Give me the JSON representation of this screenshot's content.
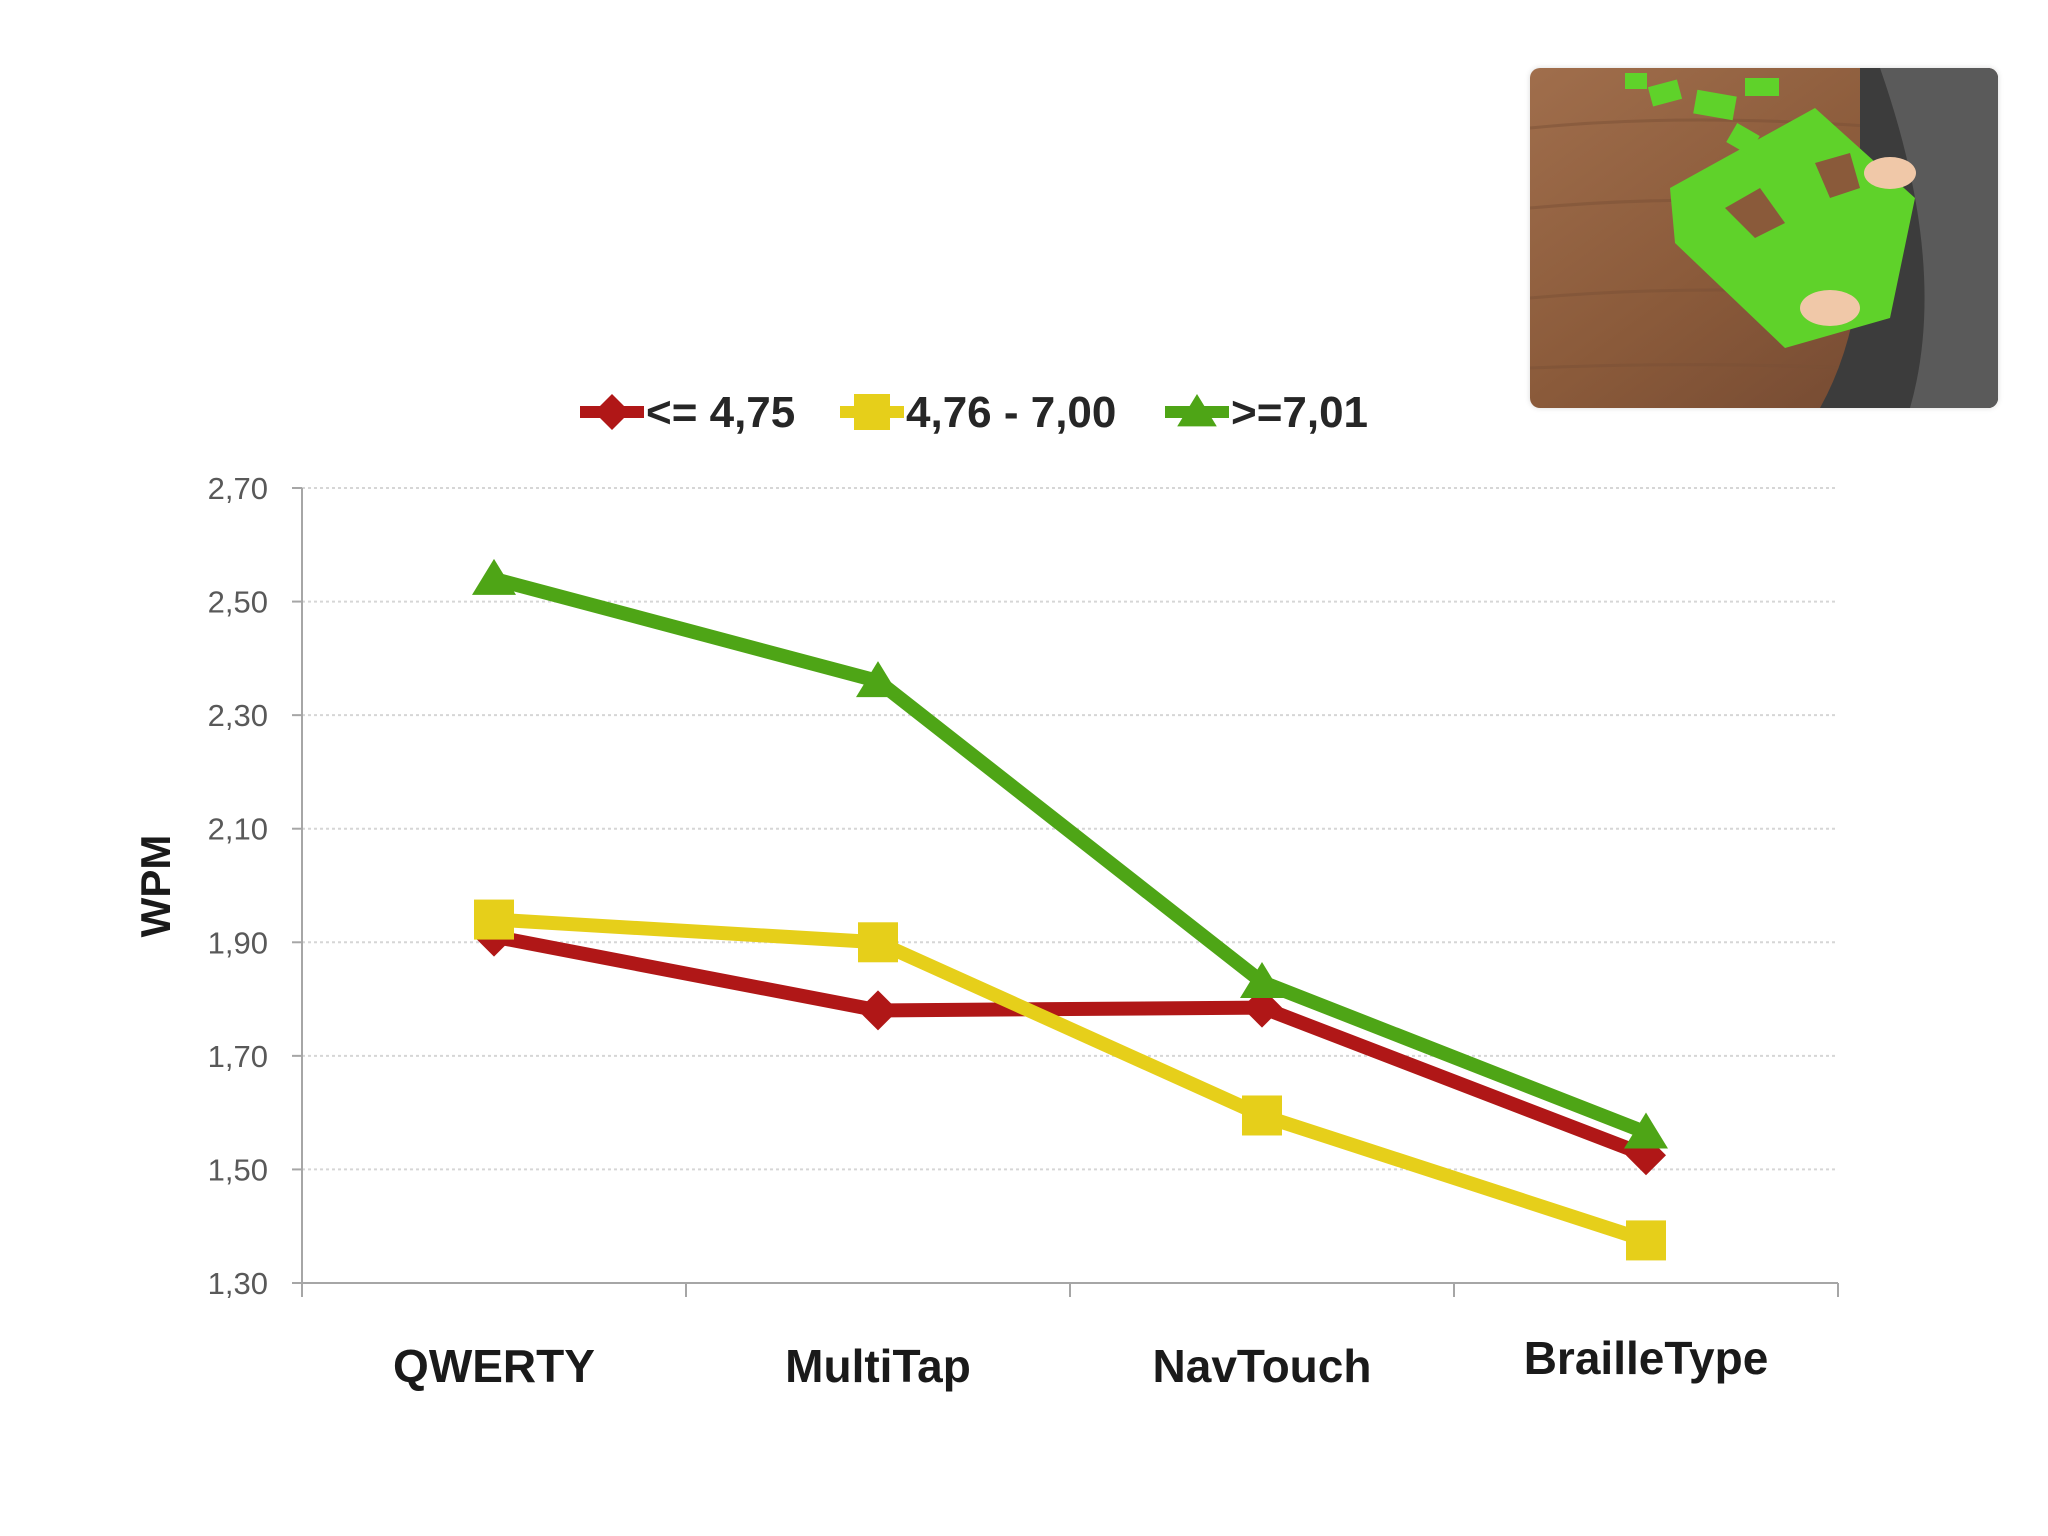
{
  "chart_data": {
    "type": "line",
    "categories": [
      "QWERTY",
      "MultiTap",
      "NavTouch",
      "BrailleType"
    ],
    "ylabel": "WPM",
    "ylim": [
      1.3,
      2.7
    ],
    "yticks": [
      "2,70",
      "2,50",
      "2,30",
      "2,10",
      "1,90",
      "1,70",
      "1,50",
      "1,30"
    ],
    "grid": true,
    "legend_position": "top",
    "series": [
      {
        "name": "<= 4,75",
        "color": "#b01717",
        "marker": "diamond",
        "values": [
          1.91,
          1.78,
          1.785,
          1.525
        ]
      },
      {
        "name": "4,76 - 7,00",
        "color": "#e6cf1a",
        "marker": "square",
        "values": [
          1.94,
          1.9,
          1.595,
          1.375
        ]
      },
      {
        "name": ">=7,01",
        "color": "#4ea516",
        "marker": "triangle",
        "values": [
          2.54,
          2.36,
          1.83,
          1.565
        ]
      }
    ]
  },
  "photo": {
    "icon": "green-puzzle-photo"
  }
}
